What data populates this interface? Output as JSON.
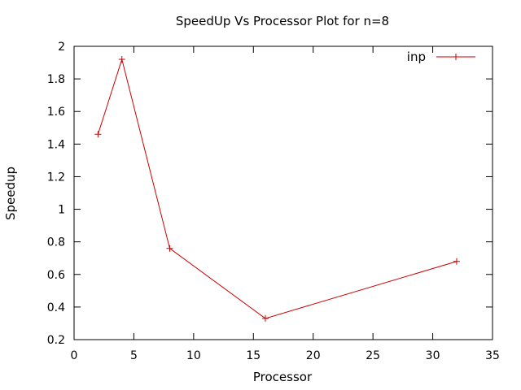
{
  "chart_data": {
    "type": "line",
    "title": "SpeedUp Vs Processor Plot for n=8",
    "xlabel": "Processor",
    "ylabel": "Speedup",
    "xlim": [
      0,
      35
    ],
    "ylim": [
      0.2,
      2
    ],
    "x_ticks": [
      0,
      5,
      10,
      15,
      20,
      25,
      30,
      35
    ],
    "y_ticks": [
      0.2,
      0.4,
      0.6,
      0.8,
      1,
      1.2,
      1.4,
      1.6,
      1.8,
      2
    ],
    "x_tick_labels": [
      "0",
      "5",
      "10",
      "15",
      "20",
      "25",
      "30",
      "35"
    ],
    "y_tick_labels": [
      "0.2",
      "0.4",
      "0.6",
      "0.8",
      "1",
      "1.2",
      "1.4",
      "1.6",
      "1.8",
      "2"
    ],
    "grid": false,
    "legend_position": "top-right",
    "series": [
      {
        "name": "inp",
        "color": "#cc0000",
        "marker": "plus",
        "x": [
          2,
          4,
          8,
          16,
          32
        ],
        "y": [
          1.46,
          1.92,
          0.76,
          0.33,
          0.68
        ]
      }
    ]
  }
}
